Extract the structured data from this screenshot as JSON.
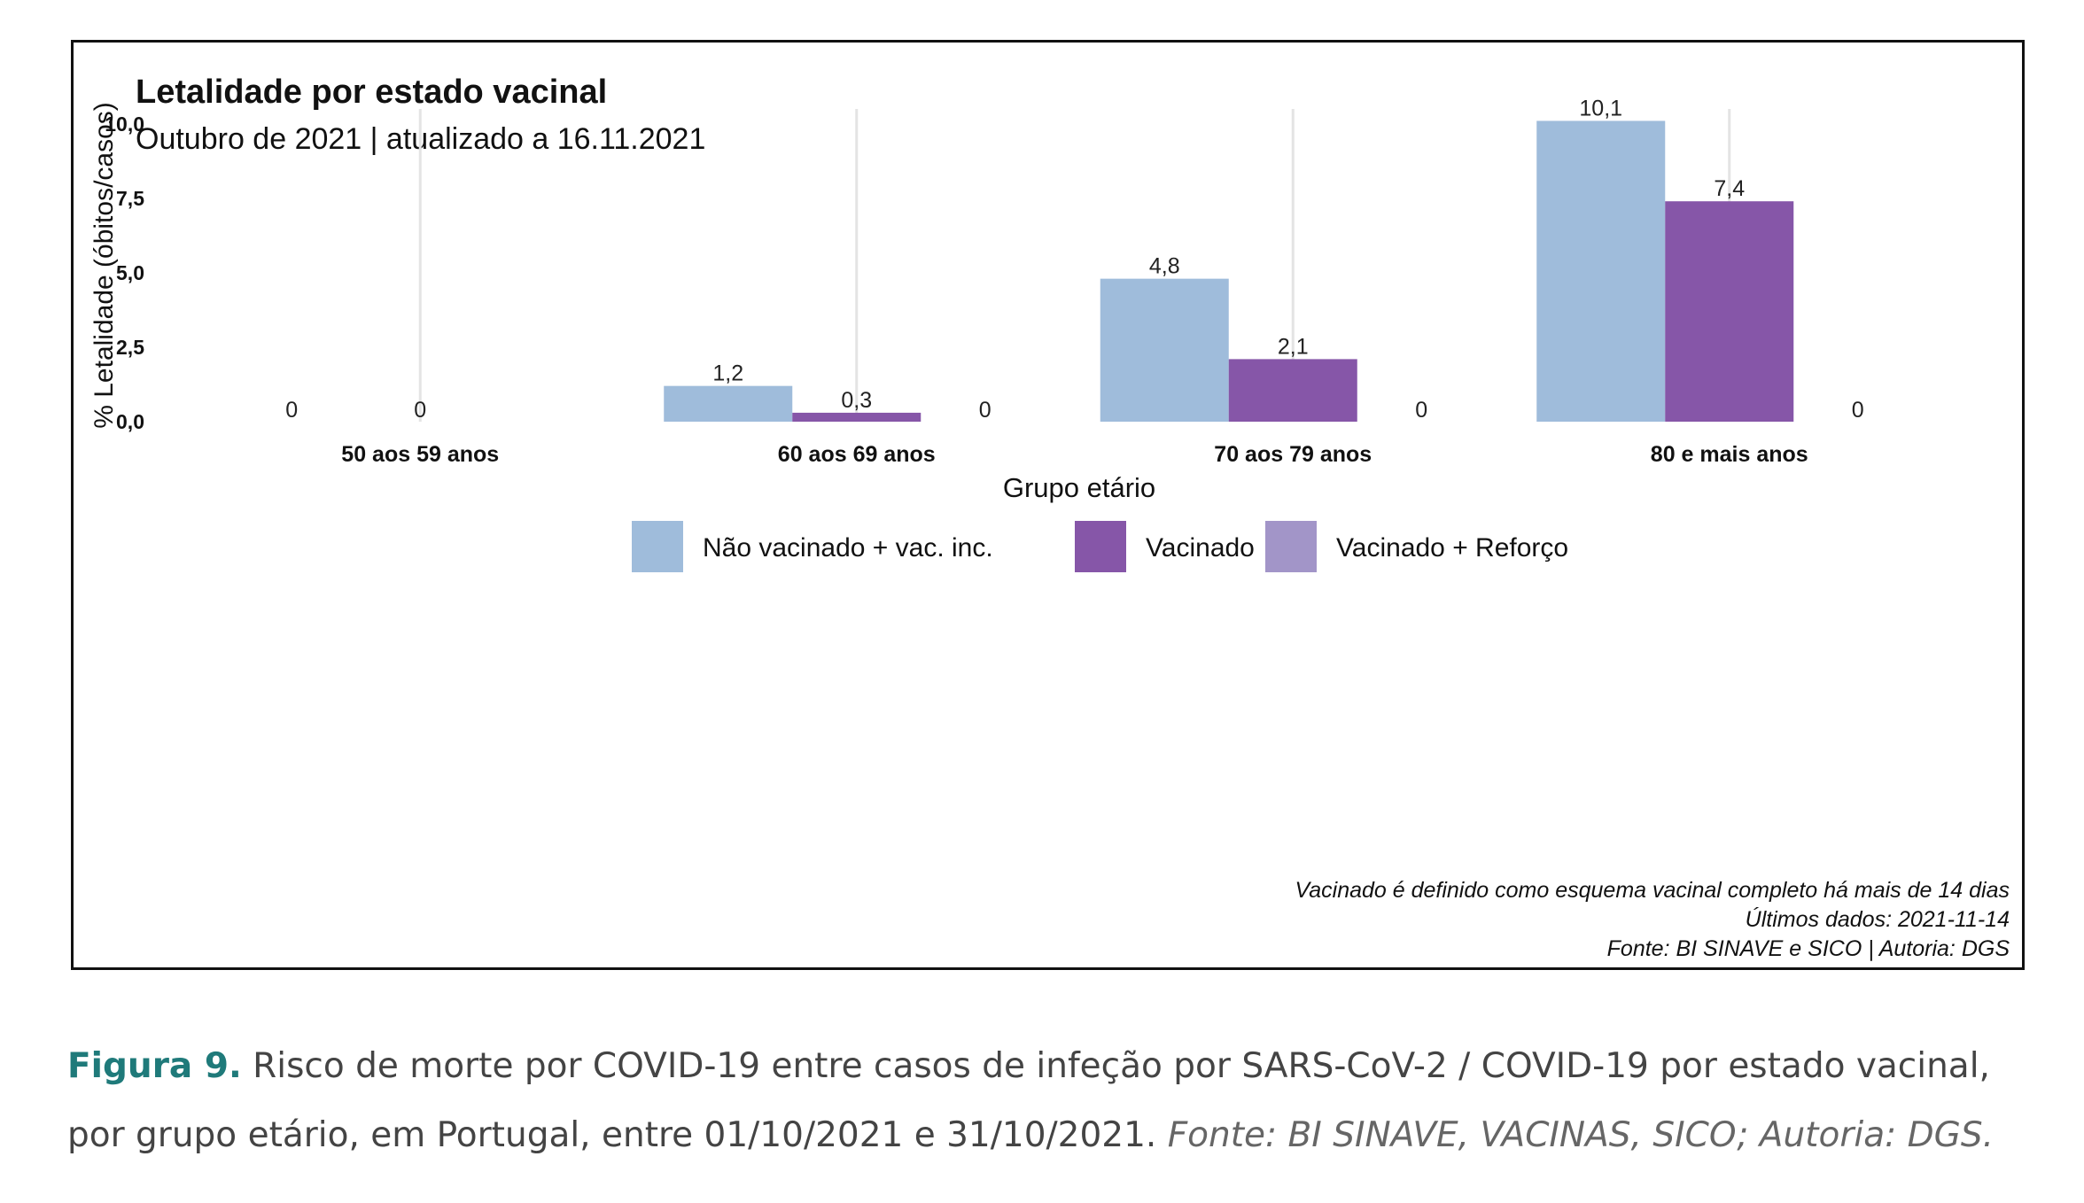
{
  "chart_data": {
    "type": "bar",
    "title": "Letalidade por estado vacinal",
    "subtitle": "Outubro de 2021 | atualizado a 16.11.2021",
    "xlabel": "Grupo etário",
    "ylabel": "% Letalidade (óbitos/casos)",
    "ylim": [
      0,
      10.5
    ],
    "yticks": [
      0,
      2.5,
      5,
      7.5,
      10
    ],
    "ytick_labels": [
      "0,0",
      "2,5",
      "5,0",
      "7,5",
      "10,0"
    ],
    "categories": [
      "50 aos 59 anos",
      "60 aos 69 anos",
      "70 aos 79 anos",
      "80 e mais anos"
    ],
    "series": [
      {
        "name": "Não vacinado + vac. inc.",
        "color": "#9fbcdb",
        "values": [
          0,
          1.2,
          4.8,
          10.1
        ],
        "labels": [
          "0",
          "1,2",
          "4,8",
          "10,1"
        ]
      },
      {
        "name": "Vacinado",
        "color": "#8656a8",
        "values": [
          0,
          0.3,
          2.1,
          7.4
        ],
        "labels": [
          "0",
          "0,3",
          "2,1",
          "7,4"
        ]
      },
      {
        "name": "Vacinado + Reforço",
        "color": "#a295c8",
        "values": [
          null,
          null,
          null,
          null
        ],
        "labels": [
          "",
          "",
          "",
          ""
        ]
      }
    ],
    "zero_labels": [
      "0",
      "0",
      "0",
      "0"
    ],
    "legend_position": "bottom",
    "grid": "vertical-major",
    "notes": [
      "Vacinado é definido como esquema vacinal completo há mais de 14 dias",
      "Últimos dados: 2021-11-14",
      "Fonte: BI SINAVE e SICO | Autoria: DGS"
    ]
  },
  "caption": {
    "label": "Figura 9.",
    "text": " Risco de morte por COVID-19 entre casos de infeção por SARS-CoV-2 / COVID-19 por estado vacinal, por grupo etário, em Portugal, entre 01/10/2021 e 31/10/2021.",
    "source": " Fonte: BI SINAVE, VACINAS, SICO; Autoria: DGS."
  }
}
